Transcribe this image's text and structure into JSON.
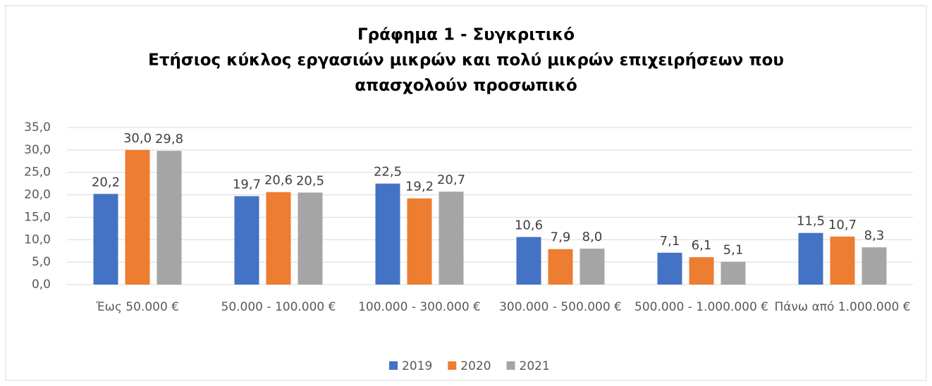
{
  "chart_data": {
    "type": "bar",
    "title": [
      "Γράφημα 1 - Συγκριτικό",
      "Ετήσιος κύκλος εργασιών μικρών και πολύ μικρών επιχειρήσεων που",
      "απασχολούν προσωπικό"
    ],
    "categories": [
      "Έως 50.000 €",
      "50.000 - 100.000 €",
      "100.000 - 300.000 €",
      "300.000 - 500.000 €",
      "500.000 - 1.000.000 €",
      "Πάνω από 1.000.000 €"
    ],
    "series": [
      {
        "name": "2019",
        "color": "#4472c4",
        "values": [
          20.2,
          19.7,
          22.5,
          10.6,
          7.1,
          11.5
        ],
        "value_labels": [
          "20,2",
          "19,7",
          "22,5",
          "10,6",
          "7,1",
          "11,5"
        ]
      },
      {
        "name": "2020",
        "color": "#ed7d31",
        "values": [
          30.0,
          20.6,
          19.2,
          7.9,
          6.1,
          10.7
        ],
        "value_labels": [
          "30,0",
          "20,6",
          "19,2",
          "7,9",
          "6,1",
          "10,7"
        ]
      },
      {
        "name": "2021",
        "color": "#a5a5a5",
        "values": [
          29.8,
          20.5,
          20.7,
          8.0,
          5.1,
          8.3
        ],
        "value_labels": [
          "29,8",
          "20,5",
          "20,7",
          "8,0",
          "5,1",
          "8,3"
        ]
      }
    ],
    "ylim": [
      0,
      35
    ],
    "yticks": [
      {
        "value": 0,
        "label": "0,0"
      },
      {
        "value": 5,
        "label": "5,0"
      },
      {
        "value": 10,
        "label": "10,0"
      },
      {
        "value": 15,
        "label": "15,0"
      },
      {
        "value": 20,
        "label": "20,0"
      },
      {
        "value": 25,
        "label": "25,0"
      },
      {
        "value": 30,
        "label": "30,0"
      },
      {
        "value": 35,
        "label": "35,0"
      }
    ],
    "grid": true,
    "legend": "bottom"
  }
}
